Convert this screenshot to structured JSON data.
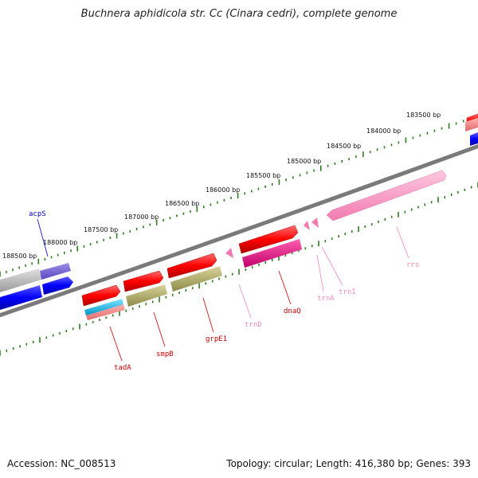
{
  "title": "Buchnera aphidicola str. Cc (Cinara cedri), complete genome",
  "footer": {
    "accession": "Accession: NC_008513",
    "summary": "Topology: circular; Length: 416,380 bp; Genes: 393"
  },
  "tick_labels": [
    "183500 bp",
    "184000 bp",
    "184500 bp",
    "185000 bp",
    "185500 bp",
    "186000 bp",
    "186500 bp",
    "187000 bp",
    "187500 bp",
    "188000 bp",
    "188500 bp"
  ],
  "gene_labels": [
    "acpS",
    "tadA",
    "smpB",
    "grpE1",
    "trnD",
    "dnaQ",
    "trnA",
    "trnI",
    "rrs"
  ],
  "colors": {
    "backbone": "#808080",
    "tick": "#2e7d1e",
    "cds_forward": "#ff0000",
    "cds_reverse_blue": "#0000ff",
    "cog_magenta": "#e6007e",
    "cog_olive": "#b8b46a",
    "cog_cyan": "#00bfef",
    "rna": "#ff9fc8",
    "label_red": "#cc0000",
    "label_pink": "#f08ab8",
    "label_blue": "#0000cc"
  }
}
